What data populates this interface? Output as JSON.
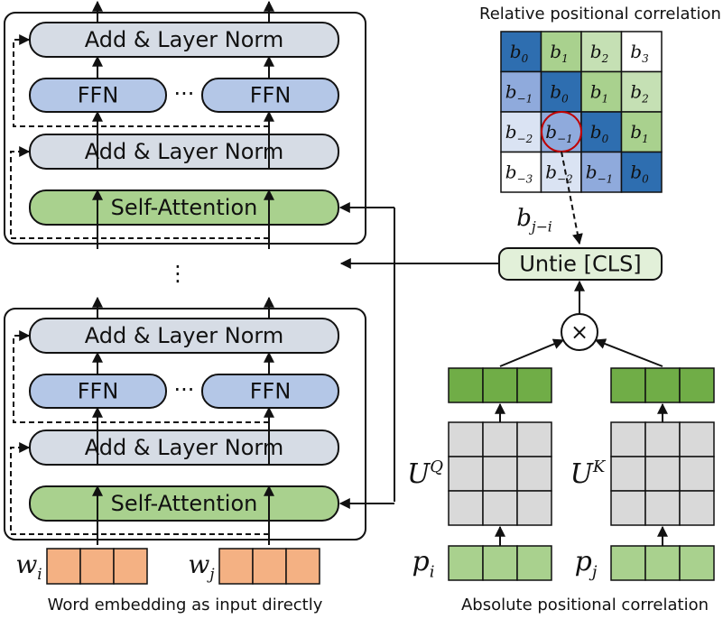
{
  "encoder": {
    "add_norm_label": "Add & Layer Norm",
    "ffn_label": "FFN",
    "ffn_ellipsis": "···",
    "self_attention_label": "Self-Attention",
    "layer_ellipsis": "⋮",
    "word_i": {
      "base": "w",
      "sub": "i"
    },
    "word_j": {
      "base": "w",
      "sub": "j"
    },
    "caption": "Word embedding as input directly"
  },
  "relative": {
    "title": "Relative positional correlation",
    "matrix": [
      [
        {
          "sub": "0",
          "color": "dark_blue"
        },
        {
          "sub": "1",
          "color": "green"
        },
        {
          "sub": "2",
          "color": "light_green"
        },
        {
          "sub": "3",
          "color": "white"
        }
      ],
      [
        {
          "sub": "−1",
          "color": "mid_blue"
        },
        {
          "sub": "0",
          "color": "dark_blue"
        },
        {
          "sub": "1",
          "color": "green"
        },
        {
          "sub": "2",
          "color": "light_green"
        }
      ],
      [
        {
          "sub": "−2",
          "color": "light_blue"
        },
        {
          "sub": "−1",
          "color": "mid_blue"
        },
        {
          "sub": "0",
          "color": "dark_blue"
        },
        {
          "sub": "1",
          "color": "green"
        }
      ],
      [
        {
          "sub": "−3",
          "color": "white"
        },
        {
          "sub": "−2",
          "color": "light_blue"
        },
        {
          "sub": "−1",
          "color": "mid_blue"
        },
        {
          "sub": "0",
          "color": "dark_blue"
        }
      ]
    ],
    "bias_label": {
      "base": "b",
      "sub": "j−i"
    },
    "untie_label": "Untie [CLS]",
    "multiply_symbol": "×"
  },
  "absolute": {
    "uq": {
      "base": "U",
      "sup": "Q"
    },
    "uk": {
      "base": "U",
      "sup": "K"
    },
    "pi": {
      "base": "p",
      "sub": "i"
    },
    "pj": {
      "base": "p",
      "sub": "j"
    },
    "caption": "Absolute positional correlation"
  },
  "colors": {
    "dark_blue": "#2e6eb0",
    "mid_blue": "#8faadc",
    "light_blue": "#dae3f3",
    "green": "#a9d18e",
    "light_green": "#c5e0b4",
    "white": "#ffffff",
    "add_norm": "#d6dce5",
    "ffn": "#b4c7e7",
    "self_attention": "#a9d18e",
    "untie": "#e2f0d9",
    "word_embedding": "#f4b183",
    "projected": "#70ad47",
    "position": "#a9d18e",
    "weight": "#d9d9d9",
    "highlight": "#c00000"
  }
}
